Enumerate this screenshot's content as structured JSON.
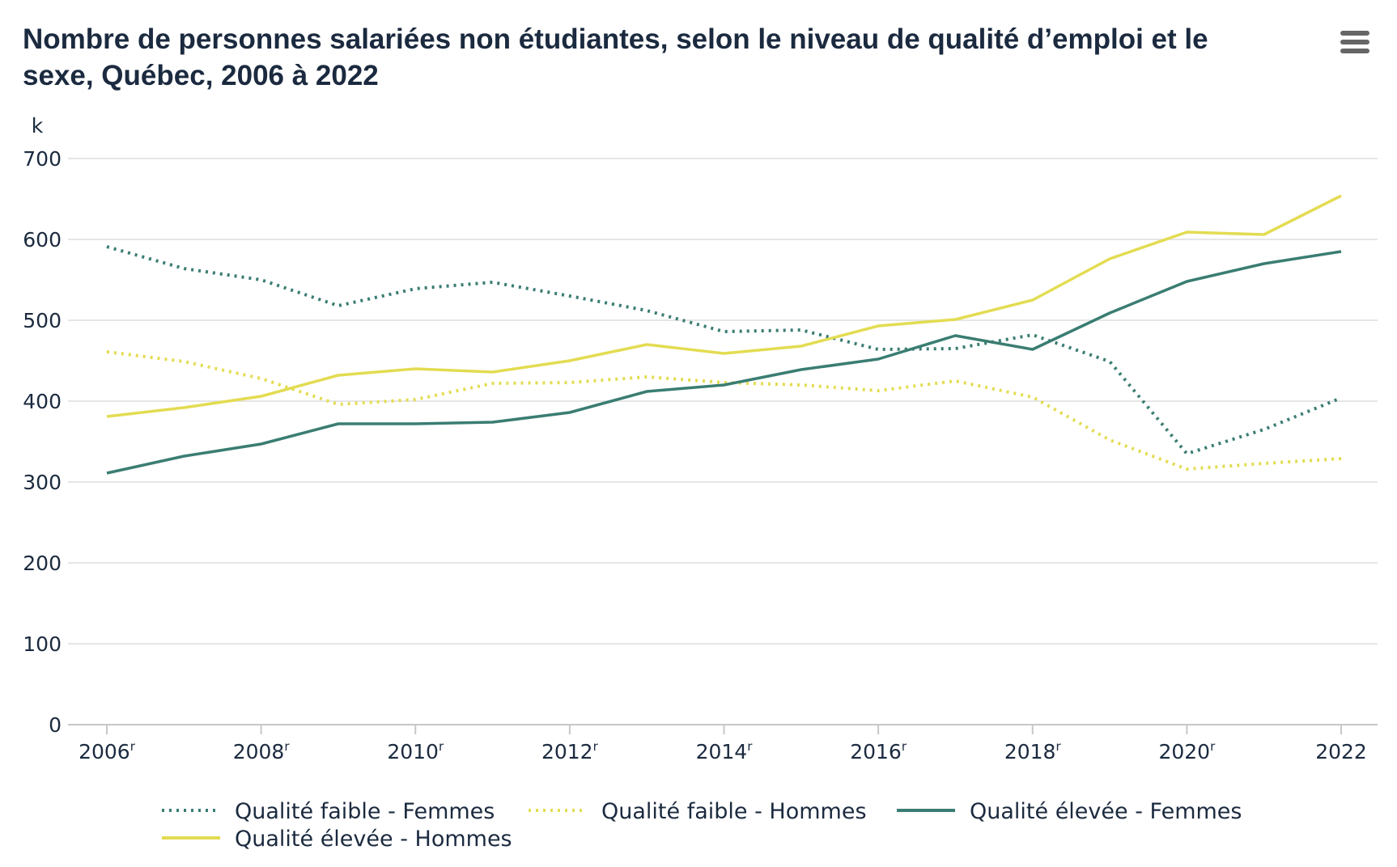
{
  "title": "Nombre de personnes salariées non étudiantes, selon le niveau de qualité d’emploi et le sexe, Québec, 2006 à 2022",
  "menu": {
    "icon": "hamburger-menu-icon"
  },
  "chart_data": {
    "type": "line",
    "title": "Nombre de personnes salariées non étudiantes, selon le niveau de qualité d’emploi et le sexe, Québec, 2006 à 2022",
    "unit_label": "k",
    "x": [
      2006,
      2007,
      2008,
      2009,
      2010,
      2011,
      2012,
      2013,
      2014,
      2015,
      2016,
      2017,
      2018,
      2019,
      2020,
      2021,
      2022
    ],
    "x_ticks": [
      {
        "value": 2006,
        "label": "2006",
        "sup": "r"
      },
      {
        "value": 2008,
        "label": "2008",
        "sup": "r"
      },
      {
        "value": 2010,
        "label": "2010",
        "sup": "r"
      },
      {
        "value": 2012,
        "label": "2012",
        "sup": "r"
      },
      {
        "value": 2014,
        "label": "2014",
        "sup": "r"
      },
      {
        "value": 2016,
        "label": "2016",
        "sup": "r"
      },
      {
        "value": 2018,
        "label": "2018",
        "sup": "r"
      },
      {
        "value": 2020,
        "label": "2020",
        "sup": "r"
      },
      {
        "value": 2022,
        "label": "2022",
        "sup": ""
      }
    ],
    "y_ticks": [
      0,
      100,
      200,
      300,
      400,
      500,
      600,
      700
    ],
    "ylim": [
      0,
      700
    ],
    "xlim": [
      2006,
      2022
    ],
    "grid": true,
    "legend_position": "bottom",
    "series": [
      {
        "name": "Qualité faible - Femmes",
        "color": "#3a7d72",
        "style": "dotted",
        "values": [
          591,
          564,
          550,
          518,
          539,
          547,
          530,
          512,
          486,
          488,
          464,
          465,
          482,
          449,
          335,
          365,
          404
        ]
      },
      {
        "name": "Qualité faible - Hommes",
        "color": "#e3dc52",
        "style": "dotted",
        "values": [
          461,
          449,
          428,
          396,
          402,
          422,
          423,
          430,
          423,
          420,
          413,
          425,
          405,
          352,
          316,
          323,
          329
        ]
      },
      {
        "name": "Qualité élevée - Femmes",
        "color": "#3a7d72",
        "style": "solid",
        "values": [
          311,
          332,
          347,
          372,
          372,
          374,
          386,
          412,
          420,
          439,
          452,
          481,
          464,
          509,
          548,
          570,
          585
        ]
      },
      {
        "name": "Qualité élevée - Hommes",
        "color": "#e3dc52",
        "style": "solid",
        "values": [
          381,
          392,
          406,
          432,
          440,
          436,
          450,
          470,
          459,
          468,
          493,
          501,
          525,
          576,
          609,
          606,
          654
        ]
      }
    ]
  }
}
